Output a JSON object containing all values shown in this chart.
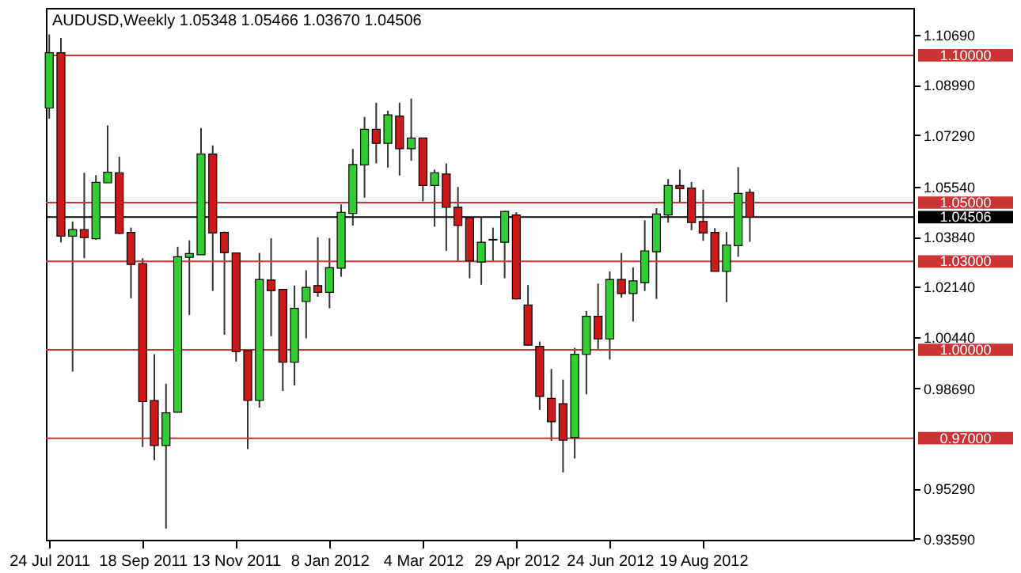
{
  "chart_data": {
    "type": "candlestick",
    "title": "AUDUSD,Weekly  1.05348 1.05466 1.03670 1.04506",
    "x": [
      "2011-07-24",
      "2011-07-31",
      "2011-08-07",
      "2011-08-14",
      "2011-08-21",
      "2011-08-28",
      "2011-09-04",
      "2011-09-11",
      "2011-09-18",
      "2011-09-25",
      "2011-10-02",
      "2011-10-09",
      "2011-10-16",
      "2011-10-23",
      "2011-10-30",
      "2011-11-06",
      "2011-11-13",
      "2011-11-20",
      "2011-11-27",
      "2011-12-04",
      "2011-12-11",
      "2011-12-18",
      "2011-12-25",
      "2012-01-01",
      "2012-01-08",
      "2012-01-15",
      "2012-01-22",
      "2012-01-29",
      "2012-02-05",
      "2012-02-12",
      "2012-02-19",
      "2012-02-26",
      "2012-03-04",
      "2012-03-11",
      "2012-03-18",
      "2012-03-25",
      "2012-04-01",
      "2012-04-08",
      "2012-04-15",
      "2012-04-22",
      "2012-04-29",
      "2012-05-06",
      "2012-05-13",
      "2012-05-20",
      "2012-05-27",
      "2012-06-03",
      "2012-06-10",
      "2012-06-17",
      "2012-06-24",
      "2012-07-01",
      "2012-07-08",
      "2012-07-15",
      "2012-07-22",
      "2012-07-29",
      "2012-08-05",
      "2012-08-12",
      "2012-08-19",
      "2012-08-26",
      "2012-09-02",
      "2012-09-09",
      "2012-09-16"
    ],
    "ohlc": [
      [
        1.0821,
        1.1071,
        1.0785,
        1.1009
      ],
      [
        1.1009,
        1.1059,
        1.0365,
        1.0386
      ],
      [
        1.0386,
        1.0436,
        0.9926,
        1.0408
      ],
      [
        1.0408,
        1.0601,
        1.0311,
        1.0381
      ],
      [
        1.0377,
        1.0593,
        1.0374,
        1.0569
      ],
      [
        1.0567,
        1.0762,
        1.0567,
        1.0603
      ],
      [
        1.0601,
        1.0656,
        1.0393,
        1.0395
      ],
      [
        1.0399,
        1.0415,
        1.0175,
        1.029
      ],
      [
        1.0293,
        1.0311,
        0.967,
        0.9824
      ],
      [
        0.9828,
        0.9985,
        0.9625,
        0.9675
      ],
      [
        0.9675,
        0.9885,
        0.9393,
        0.9786
      ],
      [
        0.9788,
        1.035,
        0.9788,
        1.0316
      ],
      [
        1.0314,
        1.0372,
        1.0118,
        1.0327
      ],
      [
        1.0323,
        1.0753,
        1.0323,
        1.0665
      ],
      [
        1.0665,
        1.0694,
        1.02,
        1.0397
      ],
      [
        1.0399,
        1.0402,
        1.0051,
        1.033
      ],
      [
        1.0329,
        1.033,
        0.996,
        0.9994
      ],
      [
        0.9997,
        0.9997,
        0.9663,
        0.9828
      ],
      [
        0.9828,
        1.0329,
        0.9804,
        1.0239
      ],
      [
        1.0237,
        1.0379,
        1.0046,
        1.0201
      ],
      [
        1.0205,
        1.0205,
        0.986,
        0.9958
      ],
      [
        0.9958,
        1.0218,
        0.9879,
        1.0141
      ],
      [
        1.0164,
        1.027,
        1.0039,
        1.0212
      ],
      [
        1.0218,
        1.0382,
        1.018,
        1.0195
      ],
      [
        1.0195,
        1.0379,
        1.0141,
        1.0279
      ],
      [
        1.0277,
        1.0494,
        1.0248,
        1.0467
      ],
      [
        1.0463,
        1.0682,
        1.0422,
        1.0629
      ],
      [
        1.0628,
        1.0791,
        1.0517,
        1.0749
      ],
      [
        1.0749,
        1.0839,
        1.0633,
        1.0701
      ],
      [
        1.0701,
        1.0812,
        1.0619,
        1.0798
      ],
      [
        1.0794,
        1.0839,
        1.0592,
        1.0683
      ],
      [
        1.0683,
        1.0853,
        1.0642,
        1.0719
      ],
      [
        1.0719,
        1.0719,
        1.0504,
        1.0558
      ],
      [
        1.0558,
        1.0612,
        1.0418,
        1.0601
      ],
      [
        1.0597,
        1.0633,
        1.0336,
        1.0484
      ],
      [
        1.0484,
        1.0553,
        1.0302,
        1.0422
      ],
      [
        1.0449,
        1.0449,
        1.0243,
        1.0302
      ],
      [
        1.0298,
        1.0451,
        1.0221,
        1.0365
      ],
      [
        1.0373,
        1.0415,
        1.0302,
        1.0375
      ],
      [
        1.0365,
        1.0472,
        1.0243,
        1.047
      ],
      [
        1.0458,
        1.0467,
        1.017,
        1.0173
      ],
      [
        1.0152,
        1.022,
        1.0014,
        1.0016
      ],
      [
        1.0012,
        1.0028,
        0.9796,
        0.9842
      ],
      [
        0.9835,
        0.9935,
        0.9691,
        0.9756
      ],
      [
        0.9817,
        0.9899,
        0.9584,
        0.9693
      ],
      [
        0.9702,
        1.0007,
        0.9631,
        0.9985
      ],
      [
        0.9985,
        1.0132,
        0.9849,
        1.0114
      ],
      [
        1.0114,
        1.0225,
        1.0003,
        1.0037
      ],
      [
        1.0037,
        1.0266,
        0.9967,
        1.0239
      ],
      [
        1.0239,
        1.0329,
        1.0177,
        1.0191
      ],
      [
        1.0191,
        1.028,
        1.0096,
        1.0234
      ],
      [
        1.0228,
        1.044,
        1.02,
        1.0336
      ],
      [
        1.0333,
        1.0481,
        1.0173,
        1.0461
      ],
      [
        1.0458,
        1.058,
        1.0432,
        1.0558
      ],
      [
        1.0558,
        1.0612,
        1.0497,
        1.0547
      ],
      [
        1.0549,
        1.057,
        1.0406,
        1.0432
      ],
      [
        1.0436,
        1.0544,
        1.037,
        1.0397
      ],
      [
        1.0399,
        1.0413,
        1.0266,
        1.0266
      ],
      [
        1.0266,
        1.04,
        1.0162,
        1.0356
      ],
      [
        1.0354,
        1.062,
        1.0316,
        1.0531
      ],
      [
        1.05348,
        1.05466,
        1.0367,
        1.04506
      ]
    ],
    "colors": [
      "#33cc33",
      "#cc1a1a",
      "#33cc33",
      "#cc1a1a",
      "#33cc33",
      "#33cc33",
      "#cc1a1a",
      "#cc1a1a",
      "#cc1a1a",
      "#cc1a1a",
      "#33cc33",
      "#33cc33",
      "#33cc33",
      "#33cc33",
      "#cc1a1a",
      "#cc1a1a",
      "#cc1a1a",
      "#cc1a1a",
      "#33cc33",
      "#cc1a1a",
      "#cc1a1a",
      "#33cc33",
      "#33cc33",
      "#cc1a1a",
      "#33cc33",
      "#33cc33",
      "#33cc33",
      "#33cc33",
      "#cc1a1a",
      "#33cc33",
      "#cc1a1a",
      "#33cc33",
      "#cc1a1a",
      "#33cc33",
      "#cc1a1a",
      "#cc1a1a",
      "#cc1a1a",
      "#33cc33",
      "#000000",
      "#33cc33",
      "#cc1a1a",
      "#cc1a1a",
      "#cc1a1a",
      "#cc1a1a",
      "#cc1a1a",
      "#33cc33",
      "#33cc33",
      "#cc1a1a",
      "#33cc33",
      "#cc1a1a",
      "#33cc33",
      "#33cc33",
      "#33cc33",
      "#33cc33",
      "#cc1a1a",
      "#cc1a1a",
      "#cc1a1a",
      "#cc1a1a",
      "#33cc33",
      "#33cc33",
      "#cc1a1a"
    ],
    "xlim": [
      "2011-07-22",
      "2012-12-23"
    ],
    "xticks": [
      {
        "value": "2011-07-24",
        "label": "24 Jul 2011"
      },
      {
        "value": "2011-09-18",
        "label": "18 Sep 2011"
      },
      {
        "value": "2011-11-13",
        "label": "13 Nov 2011"
      },
      {
        "value": "2012-01-08",
        "label": "8 Jan 2012"
      },
      {
        "value": "2012-03-04",
        "label": "4 Mar 2012"
      },
      {
        "value": "2012-04-29",
        "label": "29 Apr 2012"
      },
      {
        "value": "2012-06-24",
        "label": "24 Jun 2012"
      },
      {
        "value": "2012-08-19",
        "label": "19 Aug 2012"
      }
    ],
    "ylim": [
      0.9355,
      1.1161
    ],
    "yticks": [
      {
        "value": 1.1069,
        "label": "1.10690"
      },
      {
        "value": 1.0899,
        "label": "1.08990"
      },
      {
        "value": 1.0729,
        "label": "1.07290"
      },
      {
        "value": 1.0554,
        "label": "1.05540"
      },
      {
        "value": 1.0384,
        "label": "1.03840"
      },
      {
        "value": 1.0214,
        "label": "1.02140"
      },
      {
        "value": 1.0044,
        "label": "1.00440"
      },
      {
        "value": 0.9869,
        "label": "0.98690"
      },
      {
        "value": 0.9529,
        "label": "0.95290"
      },
      {
        "value": 0.9359,
        "label": "0.93590"
      }
    ],
    "ref_lines": [
      {
        "axis": "y",
        "value": 1.1,
        "label": "1.10000",
        "color": "#cc3333"
      },
      {
        "axis": "y",
        "value": 1.05,
        "label": "1.05000",
        "color": "#cc3333"
      },
      {
        "axis": "y",
        "value": 1.03,
        "label": "1.03000",
        "color": "#cc3333"
      },
      {
        "axis": "y",
        "value": 1.0,
        "label": "1.00000",
        "color": "#cc3333"
      },
      {
        "axis": "y",
        "value": 0.97,
        "label": "0.97000",
        "color": "#cc3333"
      },
      {
        "axis": "y",
        "value": 1.04506,
        "label": "1.04506",
        "color": "#000000"
      }
    ],
    "grid": false
  }
}
